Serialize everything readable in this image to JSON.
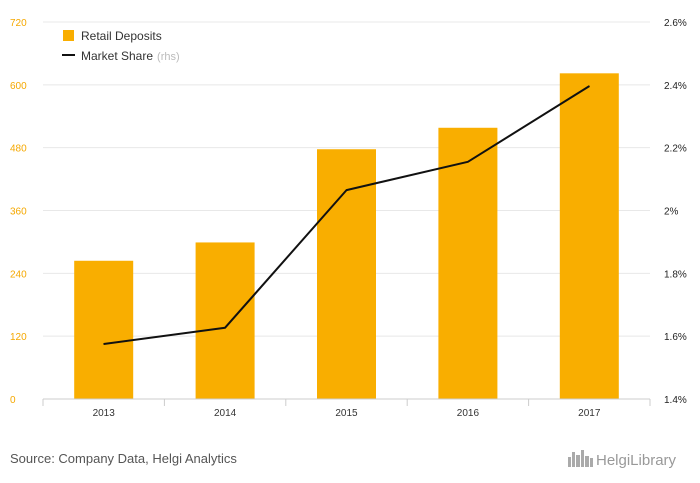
{
  "chart_data": {
    "type": "bar",
    "categories": [
      "2013",
      "2014",
      "2015",
      "2016",
      "2017"
    ],
    "series": [
      {
        "name": "Retail Deposits",
        "type": "bar",
        "axis": "left",
        "color": "#f9ae00",
        "values": [
          264,
          299,
          477,
          518,
          622
        ]
      },
      {
        "name": "Market Share",
        "type": "line",
        "axis": "right",
        "color": "#111111",
        "values": [
          1.575,
          1.627,
          2.065,
          2.155,
          2.396
        ]
      }
    ],
    "left_axis": {
      "ylim": [
        0,
        720
      ],
      "ticks": [
        "0",
        "120",
        "240",
        "360",
        "480",
        "600",
        "720"
      ],
      "tick_color": "#f5a800"
    },
    "right_axis": {
      "ylim": [
        1.4,
        2.6
      ],
      "ticks": [
        "1.4%",
        "1.6%",
        "1.8%",
        "2%",
        "2.2%",
        "2.4%",
        "2.6%"
      ]
    },
    "legend": {
      "position": "top-left",
      "items": [
        {
          "label": "Retail Deposits",
          "suffix": ""
        },
        {
          "label": "Market Share",
          "suffix": "(rhs)"
        }
      ]
    },
    "grid": true
  },
  "footer": {
    "source": "Source: Company Data, Helgi Analytics",
    "logo": "HelgiLibrary",
    "logo_icon": "city-skyline-icon"
  }
}
